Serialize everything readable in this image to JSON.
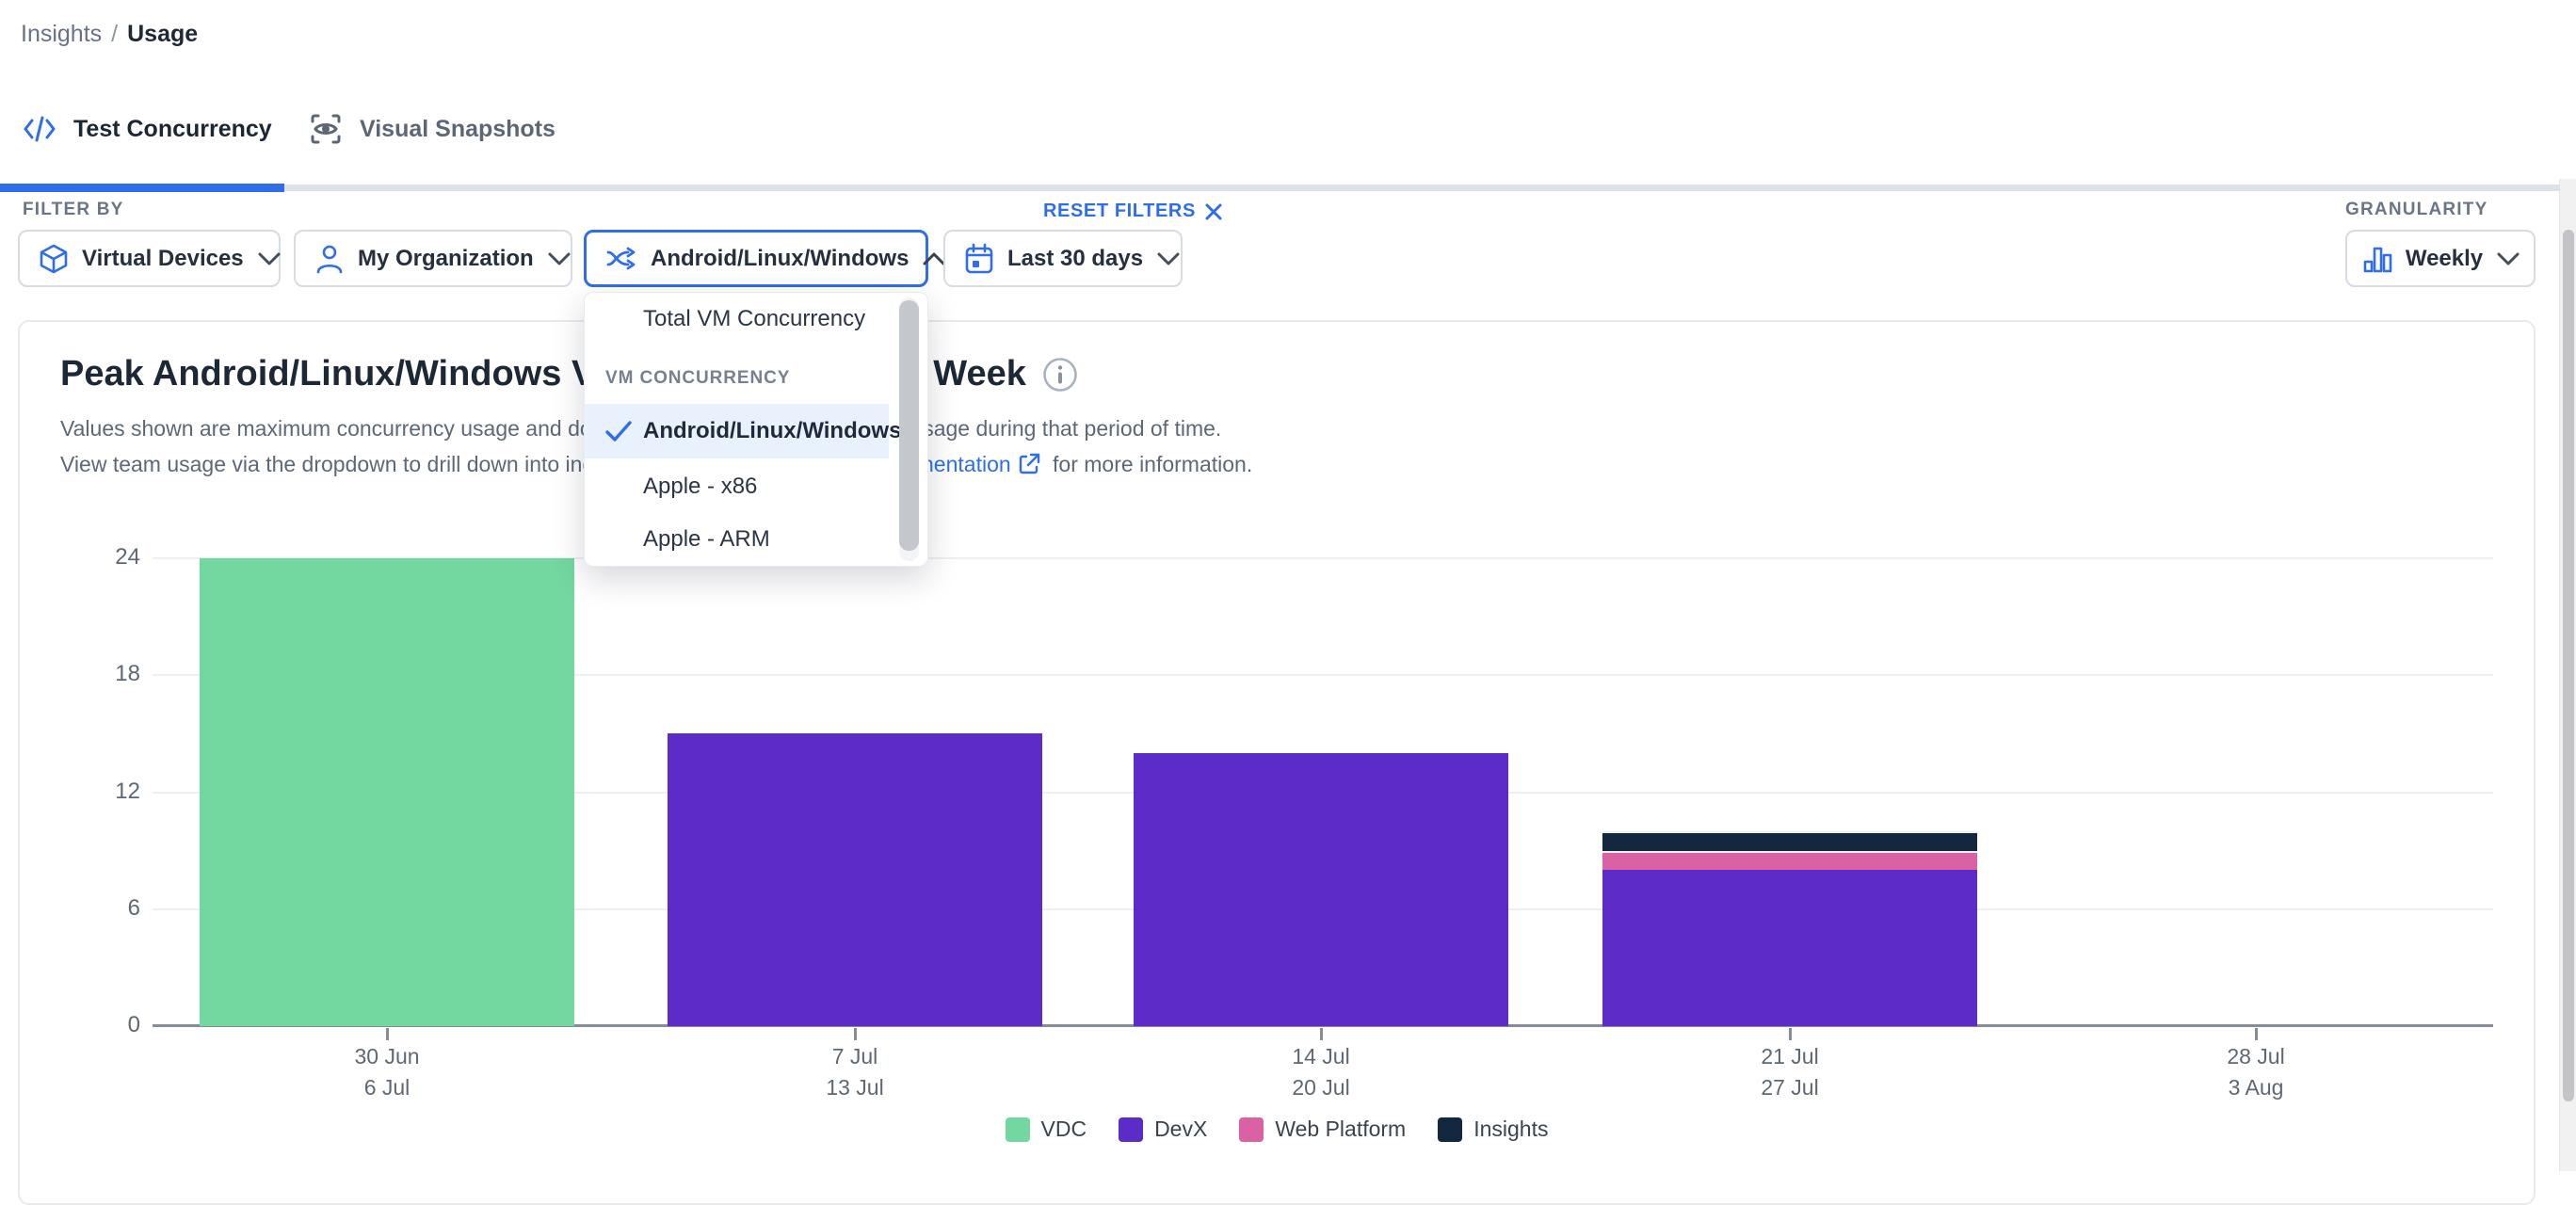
{
  "accent_color": "#2F6EE8",
  "breadcrumb": {
    "parent": "Insights",
    "separator": "/",
    "current": "Usage"
  },
  "tabs": [
    {
      "label": "Test Concurrency",
      "icon": "code-icon",
      "active": true
    },
    {
      "label": "Visual Snapshots",
      "icon": "visual-snapshot-icon",
      "active": false
    }
  ],
  "filters": {
    "label": "FILTER BY",
    "reset_label": "RESET FILTERS",
    "buttons": [
      {
        "label": "Virtual Devices",
        "icon": "cube-icon",
        "state": "closed"
      },
      {
        "label": "My Organization",
        "icon": "user-icon",
        "state": "closed"
      },
      {
        "label": "Android/Linux/Windows",
        "icon": "branch-icon",
        "state": "open"
      },
      {
        "label": "Last 30 days",
        "icon": "calendar-icon",
        "state": "closed"
      }
    ]
  },
  "granularity": {
    "label": "GRANULARITY",
    "value": "Weekly",
    "icon": "bar-chart-icon"
  },
  "dropdown_menu": {
    "items": [
      {
        "type": "option",
        "label": "Total VM Concurrency",
        "selected": false
      },
      {
        "type": "header",
        "label": "VM CONCURRENCY"
      },
      {
        "type": "option",
        "label": "Android/Linux/Windows",
        "selected": true
      },
      {
        "type": "option",
        "label": "Apple - x86",
        "selected": false
      },
      {
        "type": "option",
        "label": "Apple - ARM",
        "selected": false
      }
    ]
  },
  "chart": {
    "title": "Peak Android/Linux/Windows VM Concurrency Per Week",
    "subtitle_line1": "Values shown are maximum concurrency usage and do not reflect constant concurrency usage during that period of time.",
    "subtitle2_prefix": "View team usage via the dropdown to drill down into individual team usage. See our ",
    "subtitle2_link": "documentation",
    "subtitle2_suffix": " for more information."
  },
  "chart_data": {
    "type": "bar",
    "stacked": true,
    "title": "Peak Android/Linux/Windows VM Concurrency Per Week",
    "categories": [
      [
        "30 Jun",
        "6 Jul"
      ],
      [
        "7 Jul",
        "13 Jul"
      ],
      [
        "14 Jul",
        "20 Jul"
      ],
      [
        "21 Jul",
        "27 Jul"
      ],
      [
        "28 Jul",
        "3 Aug"
      ]
    ],
    "series": [
      {
        "name": "VDC",
        "color": "#72D8A0",
        "values": [
          24,
          0,
          0,
          0,
          0
        ]
      },
      {
        "name": "DevX",
        "color": "#5D2BC7",
        "values": [
          0,
          15,
          14,
          8,
          0
        ]
      },
      {
        "name": "Web Platform",
        "color": "#DB61A5",
        "values": [
          0,
          0,
          0,
          1,
          0
        ]
      },
      {
        "name": "Insights",
        "color": "#13273F",
        "values": [
          0,
          0,
          0,
          1,
          0
        ]
      }
    ],
    "ylabel": "",
    "xlabel": "",
    "ylim": [
      0,
      24
    ],
    "yticks": [
      0,
      6,
      12,
      18,
      24
    ],
    "grid": true,
    "legend_position": "bottom"
  }
}
